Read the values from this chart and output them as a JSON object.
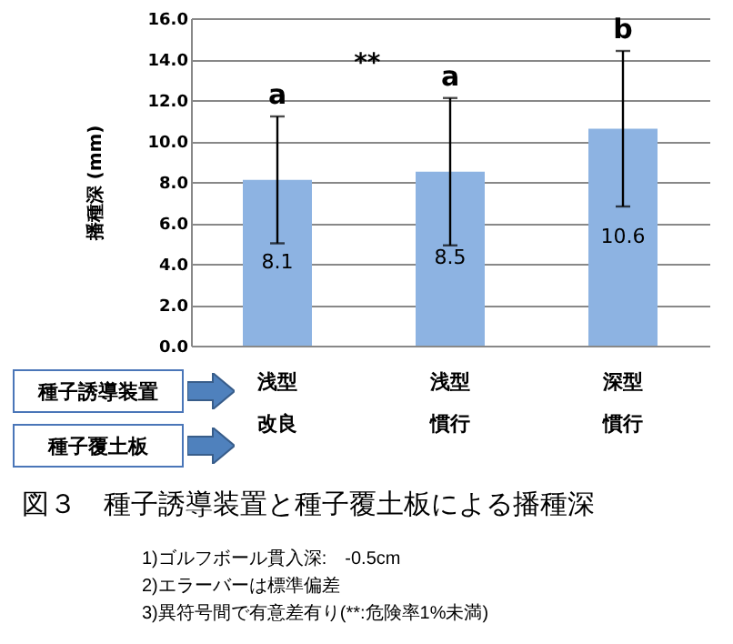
{
  "chart_data": {
    "type": "bar",
    "title": "図３　種子誘導装置と種子覆土板による播種深",
    "ylabel": "播種深 (mm)",
    "categories": [
      "浅型改良",
      "浅型慣行",
      "深型慣行"
    ],
    "values": [
      8.1,
      8.5,
      10.6
    ],
    "errors": [
      3.1,
      3.6,
      3.8
    ],
    "color": "#8db3e2",
    "data_labels": true,
    "ylim": [
      0,
      16
    ],
    "yticks": [
      {
        "value": 0,
        "label": "0.0"
      },
      {
        "value": 2,
        "label": "2.0"
      },
      {
        "value": 4,
        "label": "4.0"
      },
      {
        "value": 6,
        "label": "6.0"
      },
      {
        "value": 8,
        "label": "8.0"
      },
      {
        "value": 10,
        "label": "10.0"
      },
      {
        "value": 12,
        "label": "12.0"
      },
      {
        "value": 14,
        "label": "14.0"
      },
      {
        "value": 16,
        "label": "16.0"
      }
    ],
    "grid": "y",
    "annotations": [
      "**",
      {
        "text": "a",
        "x": "浅型改良",
        "y": 11.2
      },
      {
        "text": "a",
        "x": "浅型慣行",
        "y": 12.1
      },
      {
        "text": "b",
        "x": "深型慣行",
        "y": 14.4
      },
      "種子誘導装置",
      "種子覆土板",
      "1)ゴルフボール貫入深:　-0.5cm",
      "2)エラーバーは標準偏差",
      "3)異符号間で有意差有り(**:危険率1%未満)"
    ]
  }
}
